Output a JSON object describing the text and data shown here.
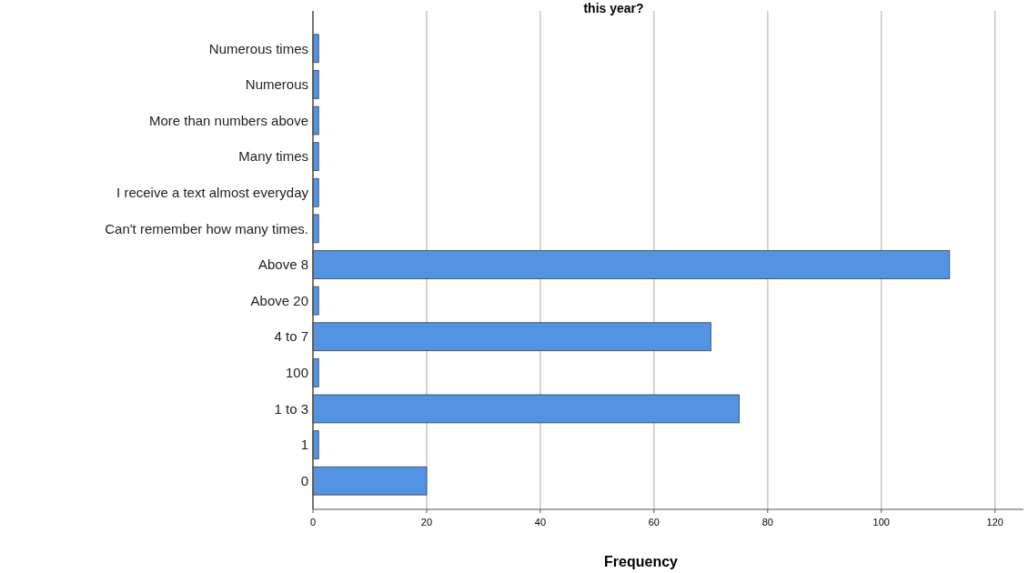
{
  "chart_data": {
    "type": "bar",
    "orientation": "horizontal",
    "title": "this year?",
    "xlabel": "Frequency",
    "categories": [
      "Numerous times",
      "Numerous",
      "More than numbers above",
      "Many times",
      "I receive a text almost everyday",
      "Can't remember how many times.",
      "Above 8",
      "Above 20",
      "4 to 7",
      "100",
      "1 to 3",
      "1",
      "0"
    ],
    "values": [
      1,
      1,
      1,
      1,
      1,
      1,
      112,
      1,
      70,
      1,
      75,
      1,
      20
    ],
    "color": "#5294e2",
    "xlim": [
      0,
      125
    ],
    "xticks": [
      0,
      20,
      40,
      60,
      80,
      100,
      120
    ],
    "grid": "x"
  }
}
